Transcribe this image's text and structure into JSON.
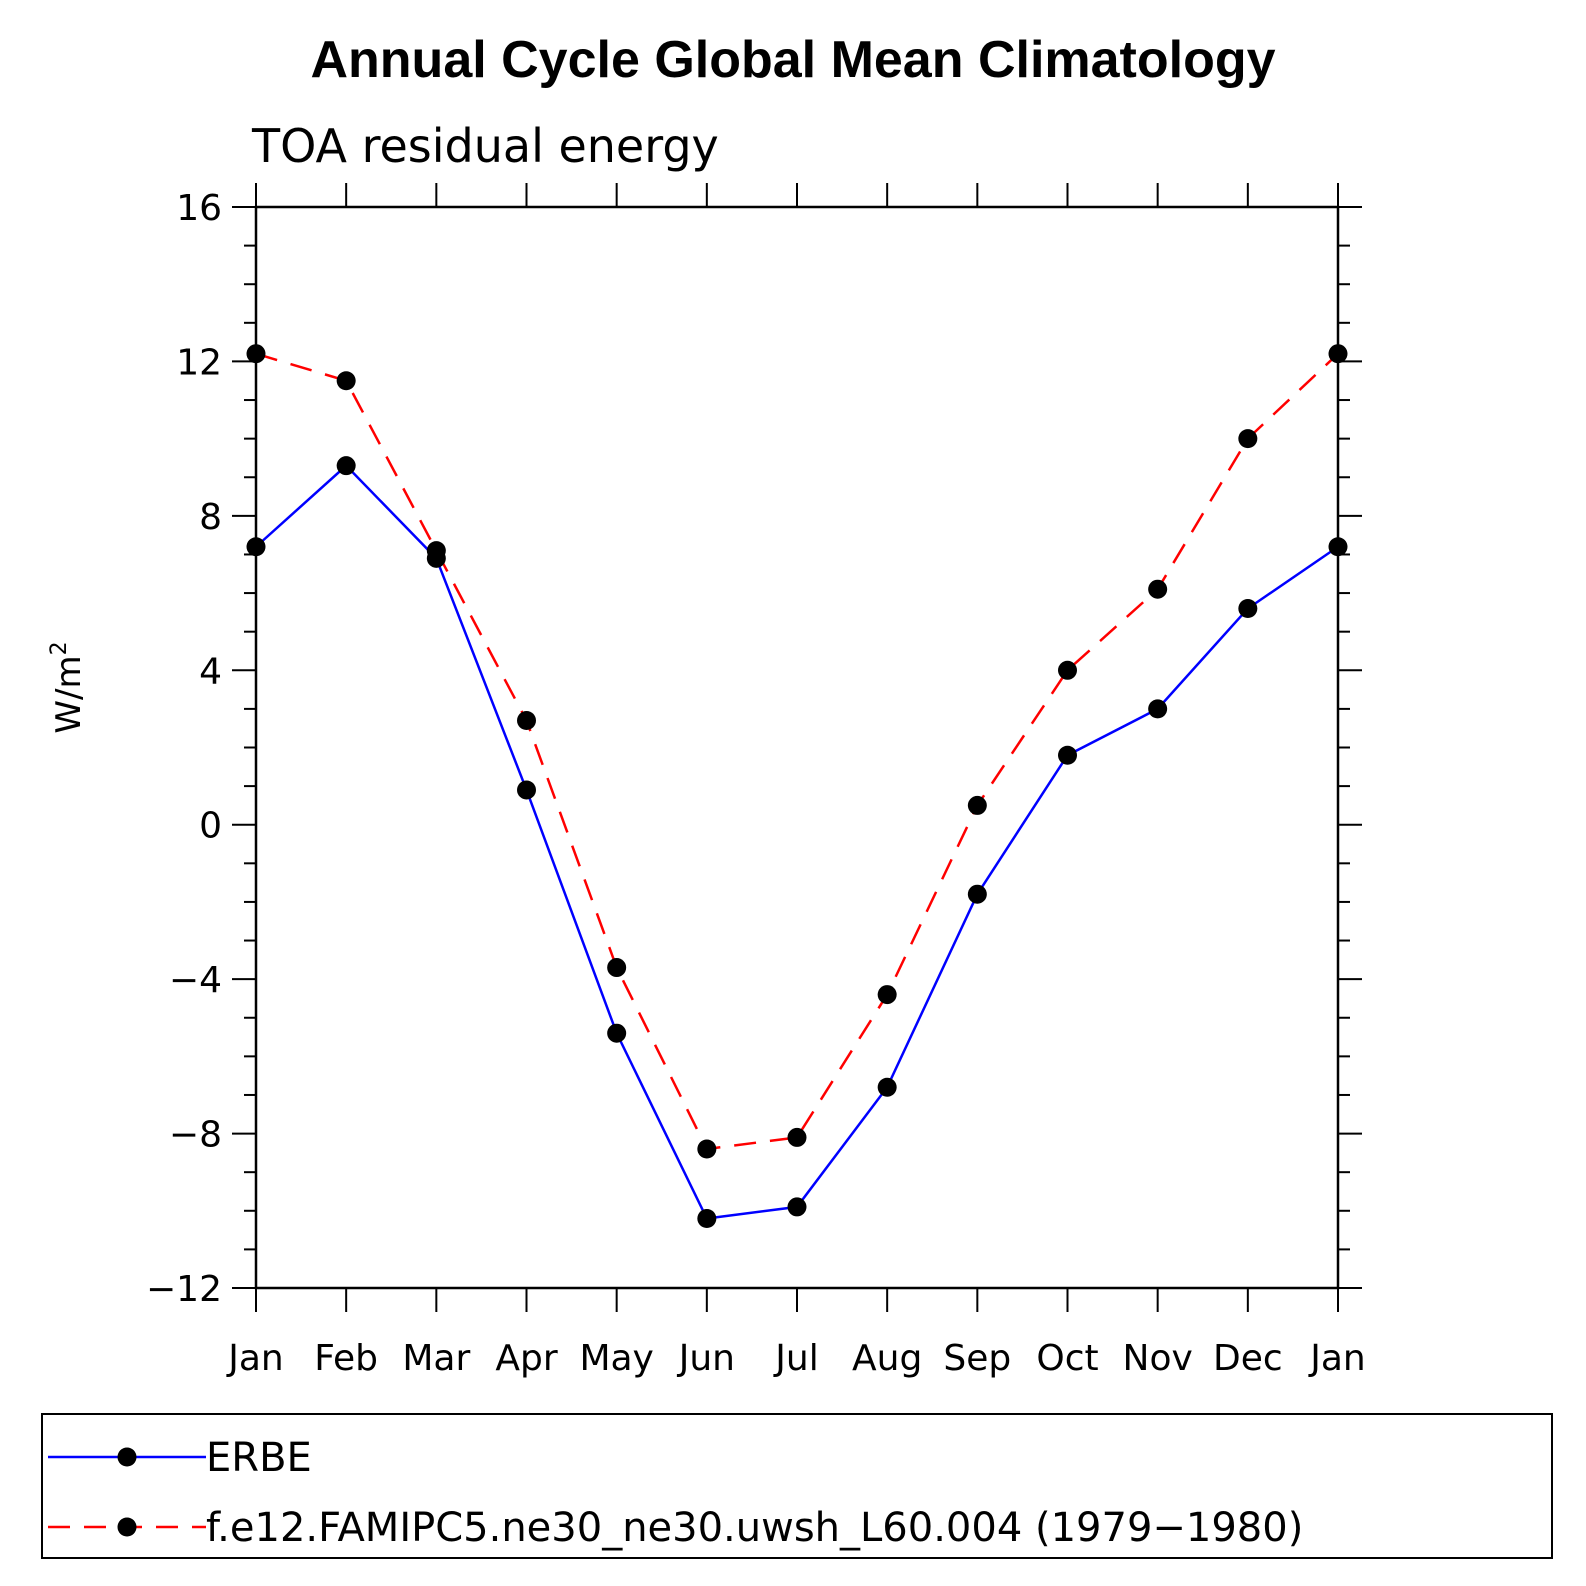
{
  "chart_data": {
    "type": "line",
    "title": "Annual Cycle Global Mean Climatology",
    "subtitle": "TOA residual energy",
    "xlabel": "",
    "ylabel_base": "W/m",
    "ylabel_sup": "2",
    "categories": [
      "Jan",
      "Feb",
      "Mar",
      "Apr",
      "May",
      "Jun",
      "Jul",
      "Aug",
      "Sep",
      "Oct",
      "Nov",
      "Dec",
      "Jan"
    ],
    "ylim": [
      -12,
      16
    ],
    "yticks": [
      -12,
      -8,
      -4,
      0,
      4,
      8,
      12,
      16
    ],
    "ytick_labels": [
      "−12",
      "−8",
      "−4",
      "0",
      "4",
      "8",
      "12",
      "16"
    ],
    "series": [
      {
        "name": "ERBE",
        "color": "#0000ff",
        "dash": "solid",
        "values": [
          7.2,
          9.3,
          6.9,
          0.9,
          -5.4,
          -10.2,
          -9.9,
          -6.8,
          -1.8,
          1.8,
          3.0,
          5.6,
          7.2
        ]
      },
      {
        "name": "f.e12.FAMIPC5.ne30_ne30.uwsh_L60.004 (1979−1980)",
        "color": "#ff0000",
        "dash": "dashed",
        "values": [
          12.2,
          11.5,
          7.1,
          2.7,
          -3.7,
          -8.4,
          -8.1,
          -4.4,
          0.5,
          4.0,
          6.1,
          10.0,
          12.2
        ]
      }
    ]
  }
}
